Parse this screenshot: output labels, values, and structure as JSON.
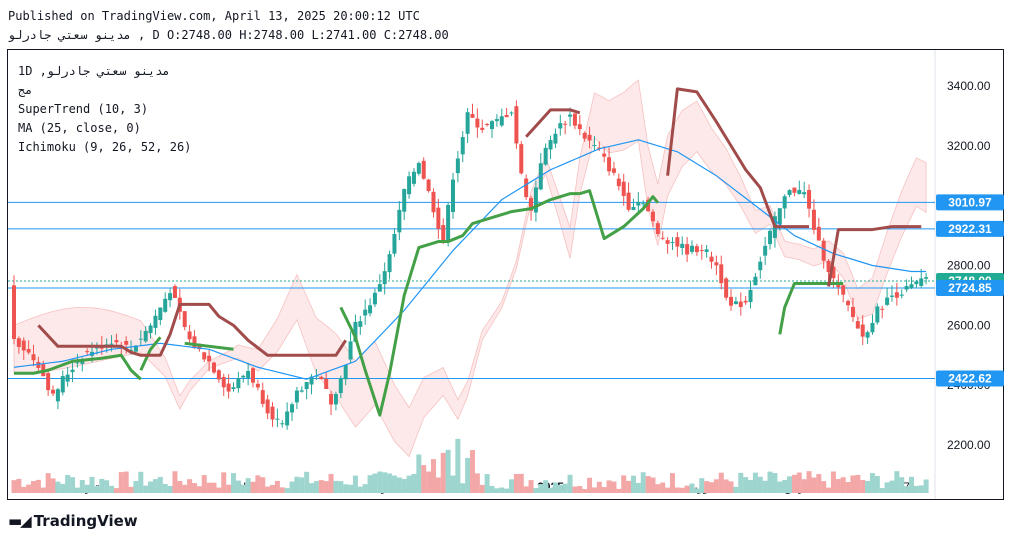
{
  "header": {
    "published": "Published on TradingView.com, April 13, 2025 20:00:12 UTC",
    "ohlc": "مدينو سعتي جادرلو , D O:2748.00 H:2748.00 L:2741.00 C:2748.00"
  },
  "legend": {
    "symbol": "1D ,مدينو سعتي جادرلو",
    "sub": "مج",
    "supertrend": "SuperTrend (10, 3)",
    "ma": "MA (25, close, 0)",
    "ichimoku": "Ichimoku (9, 26, 52, 26)"
  },
  "colors": {
    "up": "#26a69a",
    "down": "#ef5350",
    "supertrend_up": "#43a047",
    "supertrend_down": "#a14b4b",
    "ma": "#2196f3",
    "cloud_green": "#d8f0d8",
    "cloud_red": "#fde0e0",
    "hline": "#2a7fd4",
    "label_blue": "#2196f3",
    "label_green": "#22ab94"
  },
  "chart_data": {
    "type": "candlestick",
    "ylim": [
      2100,
      3520
    ],
    "y_ticks": [
      2200,
      2400,
      2600,
      2800,
      3000,
      3200,
      3400
    ],
    "y_tick_labels": [
      "2200.00",
      "2400.00",
      "2600.00",
      "2800.00",
      "3000.00",
      "3200.00",
      "3400.00"
    ],
    "x_labels": [
      {
        "label": "اكتبر",
        "index": 17
      },
      {
        "label": "Nov",
        "index": 48
      },
      {
        "label": "دسامبر",
        "index": 79
      },
      {
        "label": "2025",
        "index": 110
      },
      {
        "label": "فوريه",
        "index": 141
      },
      {
        "label": "مارس",
        "index": 161
      },
      {
        "label": "7",
        "index": 183
      }
    ],
    "horizontal_levels": [
      {
        "value": 3010.97,
        "label": "3010.97",
        "color": "#2196f3"
      },
      {
        "value": 2922.31,
        "label": "2922.31",
        "color": "#2196f3"
      },
      {
        "value": 2748.0,
        "label": "2748.00",
        "color": "#22ab94"
      },
      {
        "value": 2724.85,
        "label": "2724.85",
        "color": "#2196f3"
      },
      {
        "value": 2422.62,
        "label": "2422.62",
        "color": "#2196f3"
      }
    ],
    "close_anchors": [
      [
        0,
        2560
      ],
      [
        5,
        2470
      ],
      [
        8,
        2360
      ],
      [
        10,
        2420
      ],
      [
        14,
        2500
      ],
      [
        20,
        2550
      ],
      [
        24,
        2520
      ],
      [
        28,
        2600
      ],
      [
        32,
        2720
      ],
      [
        36,
        2550
      ],
      [
        40,
        2480
      ],
      [
        44,
        2380
      ],
      [
        48,
        2450
      ],
      [
        52,
        2320
      ],
      [
        55,
        2260
      ],
      [
        58,
        2380
      ],
      [
        62,
        2440
      ],
      [
        65,
        2350
      ],
      [
        67,
        2420
      ],
      [
        70,
        2600
      ],
      [
        74,
        2700
      ],
      [
        77,
        2830
      ],
      [
        80,
        3050
      ],
      [
        83,
        3150
      ],
      [
        86,
        2990
      ],
      [
        88,
        2880
      ],
      [
        90,
        3100
      ],
      [
        93,
        3300
      ],
      [
        96,
        3260
      ],
      [
        99,
        3280
      ],
      [
        102,
        3320
      ],
      [
        104,
        3100
      ],
      [
        106,
        2980
      ],
      [
        108,
        3150
      ],
      [
        111,
        3250
      ],
      [
        114,
        3300
      ],
      [
        117,
        3230
      ],
      [
        120,
        3180
      ],
      [
        123,
        3100
      ],
      [
        126,
        3000
      ],
      [
        129,
        3020
      ],
      [
        132,
        2900
      ],
      [
        135,
        2880
      ],
      [
        138,
        2850
      ],
      [
        141,
        2860
      ],
      [
        144,
        2800
      ],
      [
        147,
        2660
      ],
      [
        150,
        2680
      ],
      [
        153,
        2820
      ],
      [
        156,
        2950
      ],
      [
        159,
        3060
      ],
      [
        162,
        3040
      ],
      [
        165,
        2870
      ],
      [
        168,
        2750
      ],
      [
        171,
        2660
      ],
      [
        174,
        2560
      ],
      [
        177,
        2650
      ],
      [
        180,
        2700
      ],
      [
        183,
        2720
      ],
      [
        186,
        2748
      ]
    ],
    "supertrend": [
      [
        [
          0,
          2440
        ],
        [
          4,
          2440
        ],
        [
          7,
          2450
        ],
        [
          12,
          2480
        ],
        [
          18,
          2490
        ],
        [
          22,
          2500
        ],
        [
          24,
          2450
        ],
        [
          26,
          2420
        ]
      ],
      [
        [
          26,
          2450
        ],
        [
          28,
          2520
        ],
        [
          30,
          2560
        ]
      ],
      [
        [
          35,
          2540
        ],
        [
          45,
          2520
        ]
      ],
      [
        [
          50,
          2550
        ]
      ],
      [
        [
          67,
          2660
        ],
        [
          70,
          2560
        ],
        [
          72,
          2450
        ],
        [
          75,
          2300
        ],
        [
          77,
          2440
        ],
        [
          80,
          2700
        ],
        [
          83,
          2860
        ],
        [
          87,
          2880
        ],
        [
          89,
          2880
        ],
        [
          92,
          2900
        ],
        [
          94,
          2940
        ],
        [
          98,
          2960
        ],
        [
          102,
          2980
        ],
        [
          106,
          2990
        ],
        [
          110,
          3020
        ],
        [
          114,
          3040
        ],
        [
          116,
          3040
        ]
      ],
      [
        [
          116,
          3040
        ],
        [
          118,
          3050
        ],
        [
          121,
          2890
        ],
        [
          125,
          2930
        ],
        [
          129,
          2990
        ],
        [
          131,
          3030
        ],
        [
          132,
          3010
        ]
      ],
      [
        [
          157,
          2570
        ],
        [
          158,
          2660
        ],
        [
          160,
          2740
        ],
        [
          163,
          2740
        ],
        [
          166,
          2740
        ],
        [
          170,
          2740
        ]
      ]
    ],
    "supertrend_down": [
      [
        [
          5,
          2600
        ],
        [
          9,
          2530
        ],
        [
          14,
          2530
        ],
        [
          22,
          2530
        ],
        [
          24,
          2510
        ],
        [
          26,
          2500
        ],
        [
          30,
          2500
        ],
        [
          32,
          2570
        ],
        [
          34,
          2670
        ],
        [
          36,
          2670
        ],
        [
          40,
          2670
        ],
        [
          42,
          2630
        ],
        [
          45,
          2600
        ],
        [
          48,
          2550
        ],
        [
          52,
          2500
        ],
        [
          58,
          2500
        ],
        [
          62,
          2500
        ],
        [
          66,
          2500
        ],
        [
          68,
          2550
        ]
      ],
      [
        [
          105,
          3230
        ],
        [
          110,
          3320
        ],
        [
          114,
          3320
        ],
        [
          116,
          3310
        ]
      ],
      [
        [
          134,
          3100
        ],
        [
          136,
          3390
        ],
        [
          140,
          3380
        ],
        [
          142,
          3330
        ],
        [
          144,
          3280
        ],
        [
          147,
          3200
        ],
        [
          150,
          3120
        ],
        [
          153,
          3060
        ],
        [
          156,
          2930
        ],
        [
          159,
          2930
        ],
        [
          163,
          2930
        ]
      ],
      [
        [
          167,
          2730
        ],
        [
          169,
          2920
        ],
        [
          172,
          2920
        ],
        [
          176,
          2920
        ],
        [
          180,
          2930
        ],
        [
          186,
          2930
        ]
      ]
    ],
    "ma_points": [
      [
        0,
        2460
      ],
      [
        10,
        2480
      ],
      [
        20,
        2520
      ],
      [
        30,
        2540
      ],
      [
        40,
        2520
      ],
      [
        50,
        2460
      ],
      [
        60,
        2420
      ],
      [
        70,
        2480
      ],
      [
        80,
        2650
      ],
      [
        90,
        2850
      ],
      [
        100,
        3020
      ],
      [
        110,
        3120
      ],
      [
        120,
        3190
      ],
      [
        128,
        3220
      ],
      [
        136,
        3180
      ],
      [
        144,
        3100
      ],
      [
        152,
        3000
      ],
      [
        160,
        2900
      ],
      [
        168,
        2840
      ],
      [
        176,
        2800
      ],
      [
        184,
        2780
      ]
    ]
  }
}
